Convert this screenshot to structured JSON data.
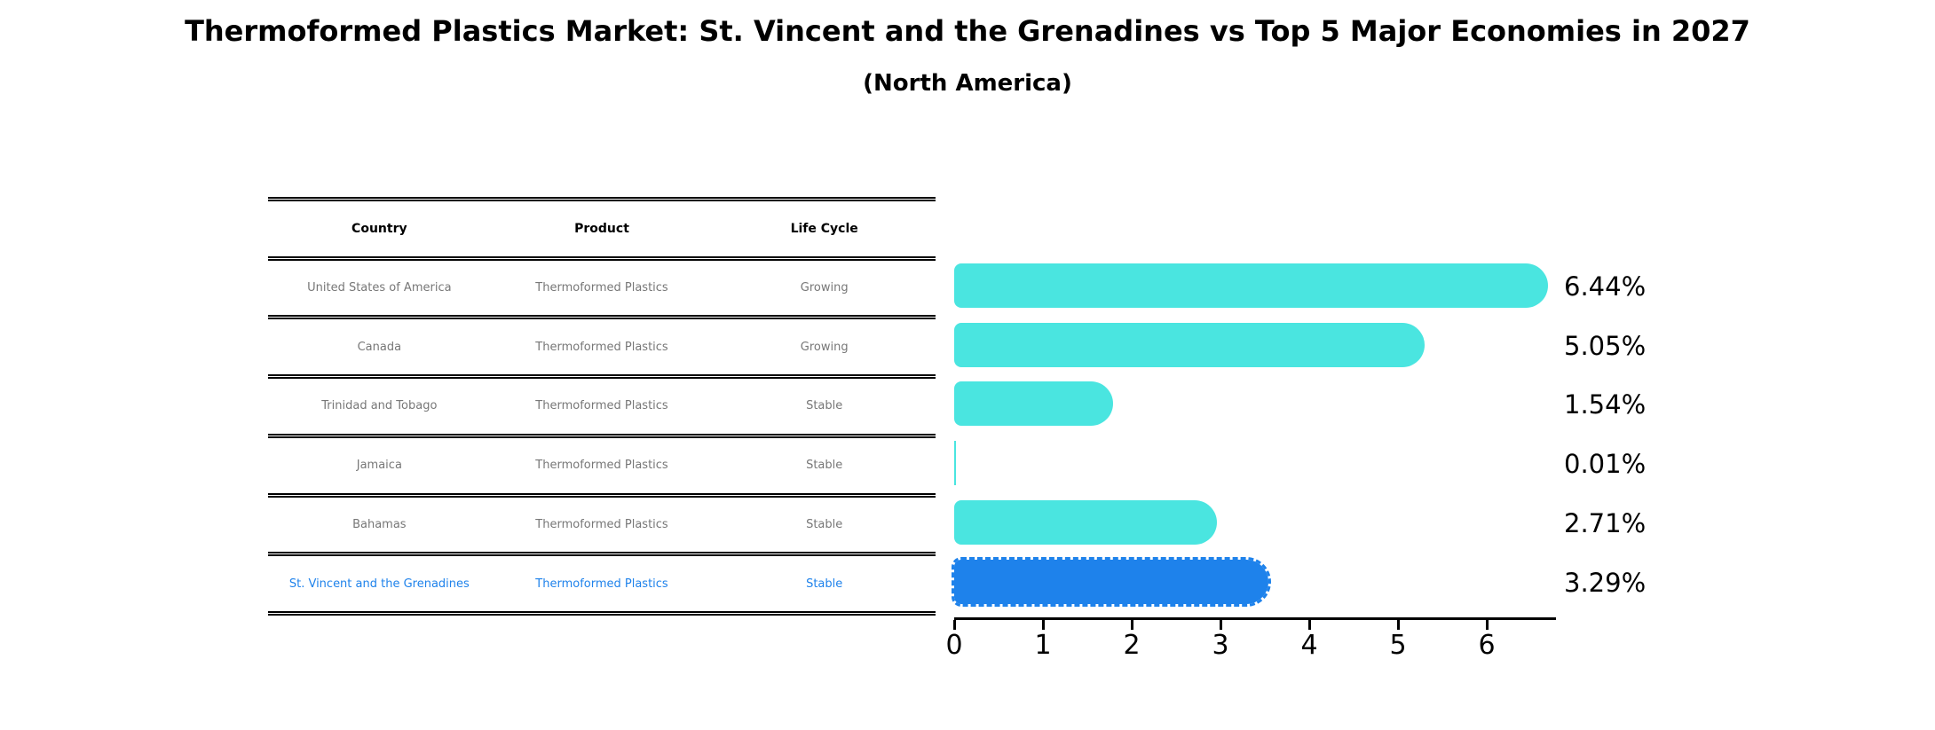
{
  "chart_data": {
    "type": "bar",
    "orientation": "horizontal",
    "title": "Thermoformed Plastics Market: St. Vincent and the Grenadines vs Top 5 Major Economies in 2027",
    "subtitle": "(North America)",
    "categories": [
      "United States of America",
      "Canada",
      "Trinidad and Tobago",
      "Jamaica",
      "Bahamas",
      "St. Vincent and the Grenadines"
    ],
    "values": [
      6.44,
      5.05,
      1.54,
      0.01,
      2.71,
      3.29
    ],
    "value_labels": [
      "6.44%",
      "5.05%",
      "1.54%",
      "0.01%",
      "2.71%",
      "3.29%"
    ],
    "x_ticks": [
      0,
      1,
      2,
      3,
      4,
      5,
      6
    ],
    "xlim": [
      0,
      6.8
    ],
    "grid": false,
    "legend": false,
    "highlight_index": 5,
    "colors": {
      "bar": "#4AE5E0",
      "highlight_bar": "#1E82EB",
      "highlight_outline": "#1E82EB",
      "axis": "#000000"
    }
  },
  "table": {
    "headers": [
      "Country",
      "Product",
      "Life Cycle"
    ],
    "rows": [
      {
        "country": "United States of America",
        "product": "Thermoformed Plastics",
        "life_cycle": "Growing",
        "highlight": false
      },
      {
        "country": "Canada",
        "product": "Thermoformed Plastics",
        "life_cycle": "Growing",
        "highlight": false
      },
      {
        "country": "Trinidad and Tobago",
        "product": "Thermoformed Plastics",
        "life_cycle": "Stable",
        "highlight": false
      },
      {
        "country": "Jamaica",
        "product": "Thermoformed Plastics",
        "life_cycle": "Stable",
        "highlight": false
      },
      {
        "country": "Bahamas",
        "product": "Thermoformed Plastics",
        "life_cycle": "Stable",
        "highlight": false
      },
      {
        "country": "St. Vincent and the Grenadines",
        "product": "Thermoformed Plastics",
        "life_cycle": "Stable",
        "highlight": true
      }
    ],
    "text_color": "#777777",
    "highlight_text_color": "#1E82EB"
  }
}
